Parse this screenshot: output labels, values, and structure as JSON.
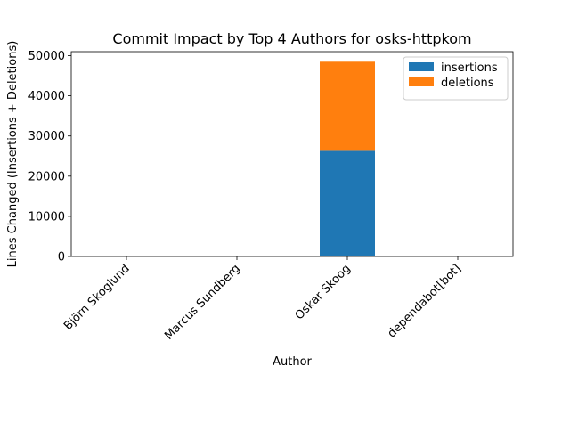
{
  "chart_data": {
    "type": "bar",
    "stacked": true,
    "title": "Commit Impact by Top 4 Authors for osks-httpkom",
    "xlabel": "Author",
    "ylabel": "Lines Changed (Insertions + Deletions)",
    "categories": [
      "Björn Skoglund",
      "Marcus Sundberg",
      "Oskar Skoog",
      "dependabot[bot]"
    ],
    "series": [
      {
        "name": "insertions",
        "color": "#1f77b4",
        "values": [
          0,
          0,
          26300,
          0
        ]
      },
      {
        "name": "deletions",
        "color": "#ff7f0e",
        "values": [
          0,
          0,
          22200,
          0
        ]
      }
    ],
    "ylim": [
      0,
      51000
    ],
    "yticks": [
      0,
      10000,
      20000,
      30000,
      40000,
      50000
    ],
    "grid": false,
    "legend": "upper right"
  }
}
